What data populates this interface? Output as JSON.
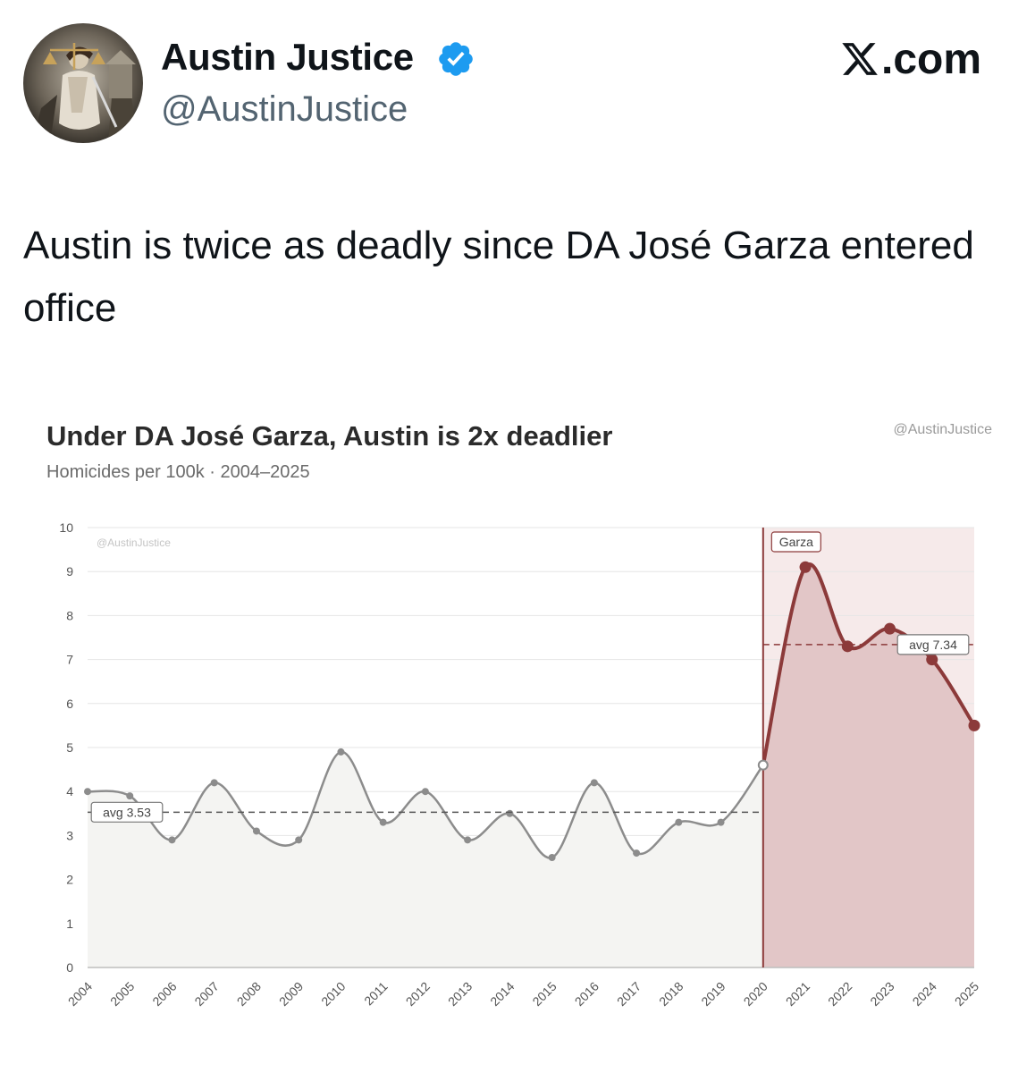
{
  "post": {
    "author_name": "Austin Justice",
    "author_handle": "@AustinJustice",
    "site": ".com",
    "text": "Austin is twice as deadly since DA José Garza entered office",
    "icons": {
      "avatar": "lady-justice-avatar",
      "verified": "verified-badge-icon",
      "logo": "x-logo-icon"
    }
  },
  "chart_data": {
    "type": "line",
    "title": "Under DA José Garza, Austin is 2x deadlier",
    "subtitle": "Homicides per 100k · 2004–2025",
    "credit": "@AustinJustice",
    "watermark": "@AustinJustice",
    "xlabel": "",
    "ylabel": "",
    "ylim": [
      0,
      10
    ],
    "yticks": [
      0,
      1,
      2,
      3,
      4,
      5,
      6,
      7,
      8,
      9,
      10
    ],
    "x": [
      "2004",
      "2005",
      "2006",
      "2007",
      "2008",
      "2009",
      "2010",
      "2011",
      "2012",
      "2013",
      "2014",
      "2015",
      "2016",
      "2017",
      "2018",
      "2019",
      "2020",
      "2021",
      "2022",
      "2023",
      "2024",
      "2025"
    ],
    "series": [
      {
        "values": [
          4.0,
          3.9,
          2.9,
          4.2,
          3.1,
          2.9,
          4.9,
          3.3,
          4.0,
          2.9,
          3.5,
          2.5,
          4.2,
          2.6,
          3.3,
          3.3,
          4.6,
          9.1,
          7.3,
          7.7,
          7.0,
          5.5
        ]
      }
    ],
    "pre_average": {
      "label": "avg 3.53",
      "value": 3.53,
      "range": [
        "2004",
        "2020"
      ]
    },
    "post_average": {
      "label": "avg 7.34",
      "value": 7.34,
      "range": [
        "2020",
        "2025"
      ]
    },
    "marker": {
      "label": "Garza",
      "x": "2020"
    },
    "grid": true,
    "colors": {
      "pre_line": "#8c8c8c",
      "pre_fill": "#f4f4f2",
      "post_line": "#8c3a3a",
      "post_fill": "#e2c6c7",
      "post_band": "#f6eaea",
      "grid": "#e6e6e6",
      "text": "#555555"
    }
  }
}
